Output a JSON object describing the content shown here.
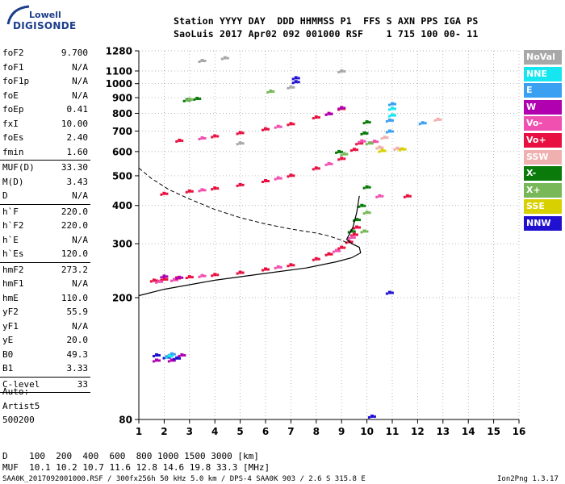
{
  "logo": {
    "top": "Lowell",
    "bottom": "DIGISONDE"
  },
  "header": {
    "line1": "Station YYYY DAY  DDD HHMMSS P1  FFS S AXN PPS IGA PS",
    "line2": "SaoLuis 2017 Apr02 092 001000 RSF    1 715 100 00- 11"
  },
  "params": [
    {
      "key": "foF2",
      "value": "9.700",
      "sep": false
    },
    {
      "key": "foF1",
      "value": "N/A",
      "sep": false
    },
    {
      "key": "foF1p",
      "value": "N/A",
      "sep": false
    },
    {
      "key": "foE",
      "value": "N/A",
      "sep": false
    },
    {
      "key": "foEp",
      "value": "0.41",
      "sep": false
    },
    {
      "key": "fxI",
      "value": "10.00",
      "sep": false
    },
    {
      "key": "foEs",
      "value": "2.40",
      "sep": false
    },
    {
      "key": "fmin",
      "value": "1.60",
      "sep": true
    },
    {
      "key": "MUF(D)",
      "value": "33.30",
      "sep": false
    },
    {
      "key": "M(D)",
      "value": "3.43",
      "sep": false
    },
    {
      "key": "D",
      "value": "N/A",
      "sep": true
    },
    {
      "key": "h`F",
      "value": "220.0",
      "sep": false
    },
    {
      "key": "h`F2",
      "value": "220.0",
      "sep": false
    },
    {
      "key": "h`E",
      "value": "N/A",
      "sep": false
    },
    {
      "key": "h`Es",
      "value": "120.0",
      "sep": true
    },
    {
      "key": "hmF2",
      "value": "273.2",
      "sep": false
    },
    {
      "key": "hmF1",
      "value": "N/A",
      "sep": false
    },
    {
      "key": "hmE",
      "value": "110.0",
      "sep": false
    },
    {
      "key": "yF2",
      "value": "55.9",
      "sep": false
    },
    {
      "key": "yF1",
      "value": "N/A",
      "sep": false
    },
    {
      "key": "yE",
      "value": "20.0",
      "sep": false
    },
    {
      "key": "B0",
      "value": "49.3",
      "sep": false
    },
    {
      "key": "B1",
      "value": "3.33",
      "sep": true
    },
    {
      "key": "C-level",
      "value": "33",
      "sep": true
    }
  ],
  "auto": {
    "line1": "Auto:",
    "line2": "Artist5",
    "line3": "500200"
  },
  "legend": [
    {
      "label": "NoVal",
      "color": "#a8a8a8"
    },
    {
      "label": "NNE",
      "color": "#16e6f0"
    },
    {
      "label": "E",
      "color": "#3aa0f2"
    },
    {
      "label": "W",
      "color": "#b000b0"
    },
    {
      "label": "Vo-",
      "color": "#f050b0"
    },
    {
      "label": "Vo+",
      "color": "#e81040"
    },
    {
      "label": "SSW",
      "color": "#f0b0b0"
    },
    {
      "label": "X-",
      "color": "#0a7a0a"
    },
    {
      "label": "X+",
      "color": "#78b858"
    },
    {
      "label": "SSE",
      "color": "#d8d000"
    },
    {
      "label": "NNW",
      "color": "#2010d0"
    }
  ],
  "footer": {
    "line1": "D    100  200  400  600  800 1000 1500 3000 [km]",
    "line2": "MUF  10.1 10.2 10.7 11.6 12.8 14.6 19.8 33.3 [MHz]",
    "line3": "SAA0K_2017092001000.RSF / 300fx256h 50 kHz 5.0 km / DPS-4 SAA0K 903 / 2.6 S 315.8 E",
    "version": "Ion2Png 1.3.17"
  },
  "chart_data": {
    "type": "scatter",
    "title": "",
    "xlabel": "",
    "ylabel": "",
    "xlim": [
      1,
      16
    ],
    "ylim": [
      80,
      1280
    ],
    "y_scale": "log",
    "x_ticks": [
      1,
      2,
      3,
      4,
      5,
      6,
      7,
      8,
      9,
      10,
      11,
      12,
      13,
      14,
      15,
      16
    ],
    "y_ticks": [
      80,
      200,
      300,
      400,
      500,
      600,
      700,
      800,
      900,
      1000,
      1100,
      1280
    ],
    "grid": true,
    "series": [
      {
        "name": "Vo+",
        "color": "#e81040",
        "points": [
          [
            1.6,
            228
          ],
          [
            2.0,
            230
          ],
          [
            2.5,
            232
          ],
          [
            3.0,
            234
          ],
          [
            4.0,
            238
          ],
          [
            5.0,
            242
          ],
          [
            6.0,
            248
          ],
          [
            7.0,
            256
          ],
          [
            8.0,
            268
          ],
          [
            8.5,
            278
          ],
          [
            9.0,
            292
          ],
          [
            9.3,
            305
          ],
          [
            9.5,
            322
          ],
          [
            9.6,
            340
          ],
          [
            2.0,
            438
          ],
          [
            3.0,
            446
          ],
          [
            4.0,
            456
          ],
          [
            5.0,
            468
          ],
          [
            6.0,
            482
          ],
          [
            7.0,
            502
          ],
          [
            8.0,
            530
          ],
          [
            9.0,
            570
          ],
          [
            9.5,
            610
          ],
          [
            9.7,
            640
          ],
          [
            2.6,
            653
          ],
          [
            4.0,
            675
          ],
          [
            5.0,
            692
          ],
          [
            6.0,
            712
          ],
          [
            7.0,
            740
          ],
          [
            8.0,
            778
          ],
          [
            9.0,
            830
          ],
          [
            11.6,
            430
          ]
        ]
      },
      {
        "name": "Vo-",
        "color": "#f050b0",
        "points": [
          [
            1.8,
            226
          ],
          [
            2.4,
            229
          ],
          [
            3.5,
            236
          ],
          [
            6.5,
            252
          ],
          [
            8.8,
            285
          ],
          [
            9.4,
            315
          ],
          [
            3.5,
            450
          ],
          [
            6.5,
            492
          ],
          [
            8.5,
            548
          ],
          [
            9.8,
            650
          ],
          [
            10.3,
            648
          ],
          [
            10.5,
            430
          ],
          [
            3.5,
            665
          ],
          [
            6.5,
            725
          ],
          [
            8.5,
            800
          ]
        ]
      },
      {
        "name": "X-",
        "color": "#0a7a0a",
        "points": [
          [
            9.4,
            330
          ],
          [
            9.6,
            360
          ],
          [
            9.8,
            400
          ],
          [
            10.0,
            460
          ],
          [
            8.9,
            600
          ],
          [
            9.9,
            690
          ],
          [
            10.0,
            750
          ],
          [
            2.9,
            885
          ],
          [
            3.3,
            895
          ]
        ]
      },
      {
        "name": "X+",
        "color": "#78b858",
        "points": [
          [
            9.9,
            330
          ],
          [
            10.0,
            380
          ],
          [
            9.1,
            590
          ],
          [
            10.1,
            640
          ],
          [
            3.0,
            890
          ],
          [
            6.2,
            945
          ]
        ]
      },
      {
        "name": "W",
        "color": "#b000b0",
        "points": [
          [
            1.7,
            125
          ],
          [
            2.3,
            125
          ],
          [
            2.7,
            130
          ],
          [
            2.0,
            235
          ],
          [
            2.6,
            233
          ],
          [
            8.5,
            798
          ],
          [
            9.0,
            835
          ]
        ]
      },
      {
        "name": "NNW",
        "color": "#2010d0",
        "points": [
          [
            1.7,
            130
          ],
          [
            2.1,
            128
          ],
          [
            2.5,
            127
          ],
          [
            7.2,
            1045
          ],
          [
            7.2,
            1015
          ],
          [
            10.2,
            82
          ],
          [
            10.9,
            208
          ]
        ]
      },
      {
        "name": "E",
        "color": "#3aa0f2",
        "points": [
          [
            10.9,
            700
          ],
          [
            10.9,
            760
          ],
          [
            11.0,
            860
          ],
          [
            12.2,
            745
          ],
          [
            2.3,
            131
          ]
        ]
      },
      {
        "name": "NNE",
        "color": "#16e6f0",
        "points": [
          [
            11.0,
            790
          ],
          [
            11.0,
            830
          ],
          [
            2.2,
            129
          ]
        ]
      },
      {
        "name": "SSW",
        "color": "#f0b0b0",
        "points": [
          [
            10.5,
            620
          ],
          [
            11.2,
            615
          ],
          [
            12.8,
            765
          ],
          [
            10.7,
            668
          ]
        ]
      },
      {
        "name": "SSE",
        "color": "#d8d000",
        "points": [
          [
            10.6,
            605
          ],
          [
            11.4,
            612
          ]
        ]
      },
      {
        "name": "NoVal",
        "color": "#a8a8a8",
        "points": [
          [
            3.5,
            1190
          ],
          [
            4.4,
            1215
          ],
          [
            5.0,
            640
          ],
          [
            7.0,
            975
          ],
          [
            9.0,
            1100
          ]
        ]
      }
    ],
    "profile": [
      [
        1.0,
        203
      ],
      [
        2.0,
        213
      ],
      [
        4.0,
        228
      ],
      [
        6.0,
        240
      ],
      [
        7.6,
        250
      ],
      [
        8.8,
        262
      ],
      [
        9.4,
        270
      ],
      [
        9.75,
        280
      ],
      [
        9.7,
        292
      ],
      [
        9.4,
        300
      ],
      [
        9.2,
        310
      ],
      [
        9.45,
        340
      ],
      [
        9.6,
        380
      ],
      [
        9.7,
        430
      ]
    ],
    "extrapolation": [
      [
        1.0,
        530
      ],
      [
        1.5,
        490
      ],
      [
        2.2,
        450
      ],
      [
        3.0,
        420
      ],
      [
        4.0,
        388
      ],
      [
        5.0,
        365
      ],
      [
        6.0,
        348
      ],
      [
        7.0,
        335
      ],
      [
        8.0,
        325
      ],
      [
        8.5,
        318
      ],
      [
        9.0,
        308
      ],
      [
        9.3,
        300
      ]
    ]
  }
}
